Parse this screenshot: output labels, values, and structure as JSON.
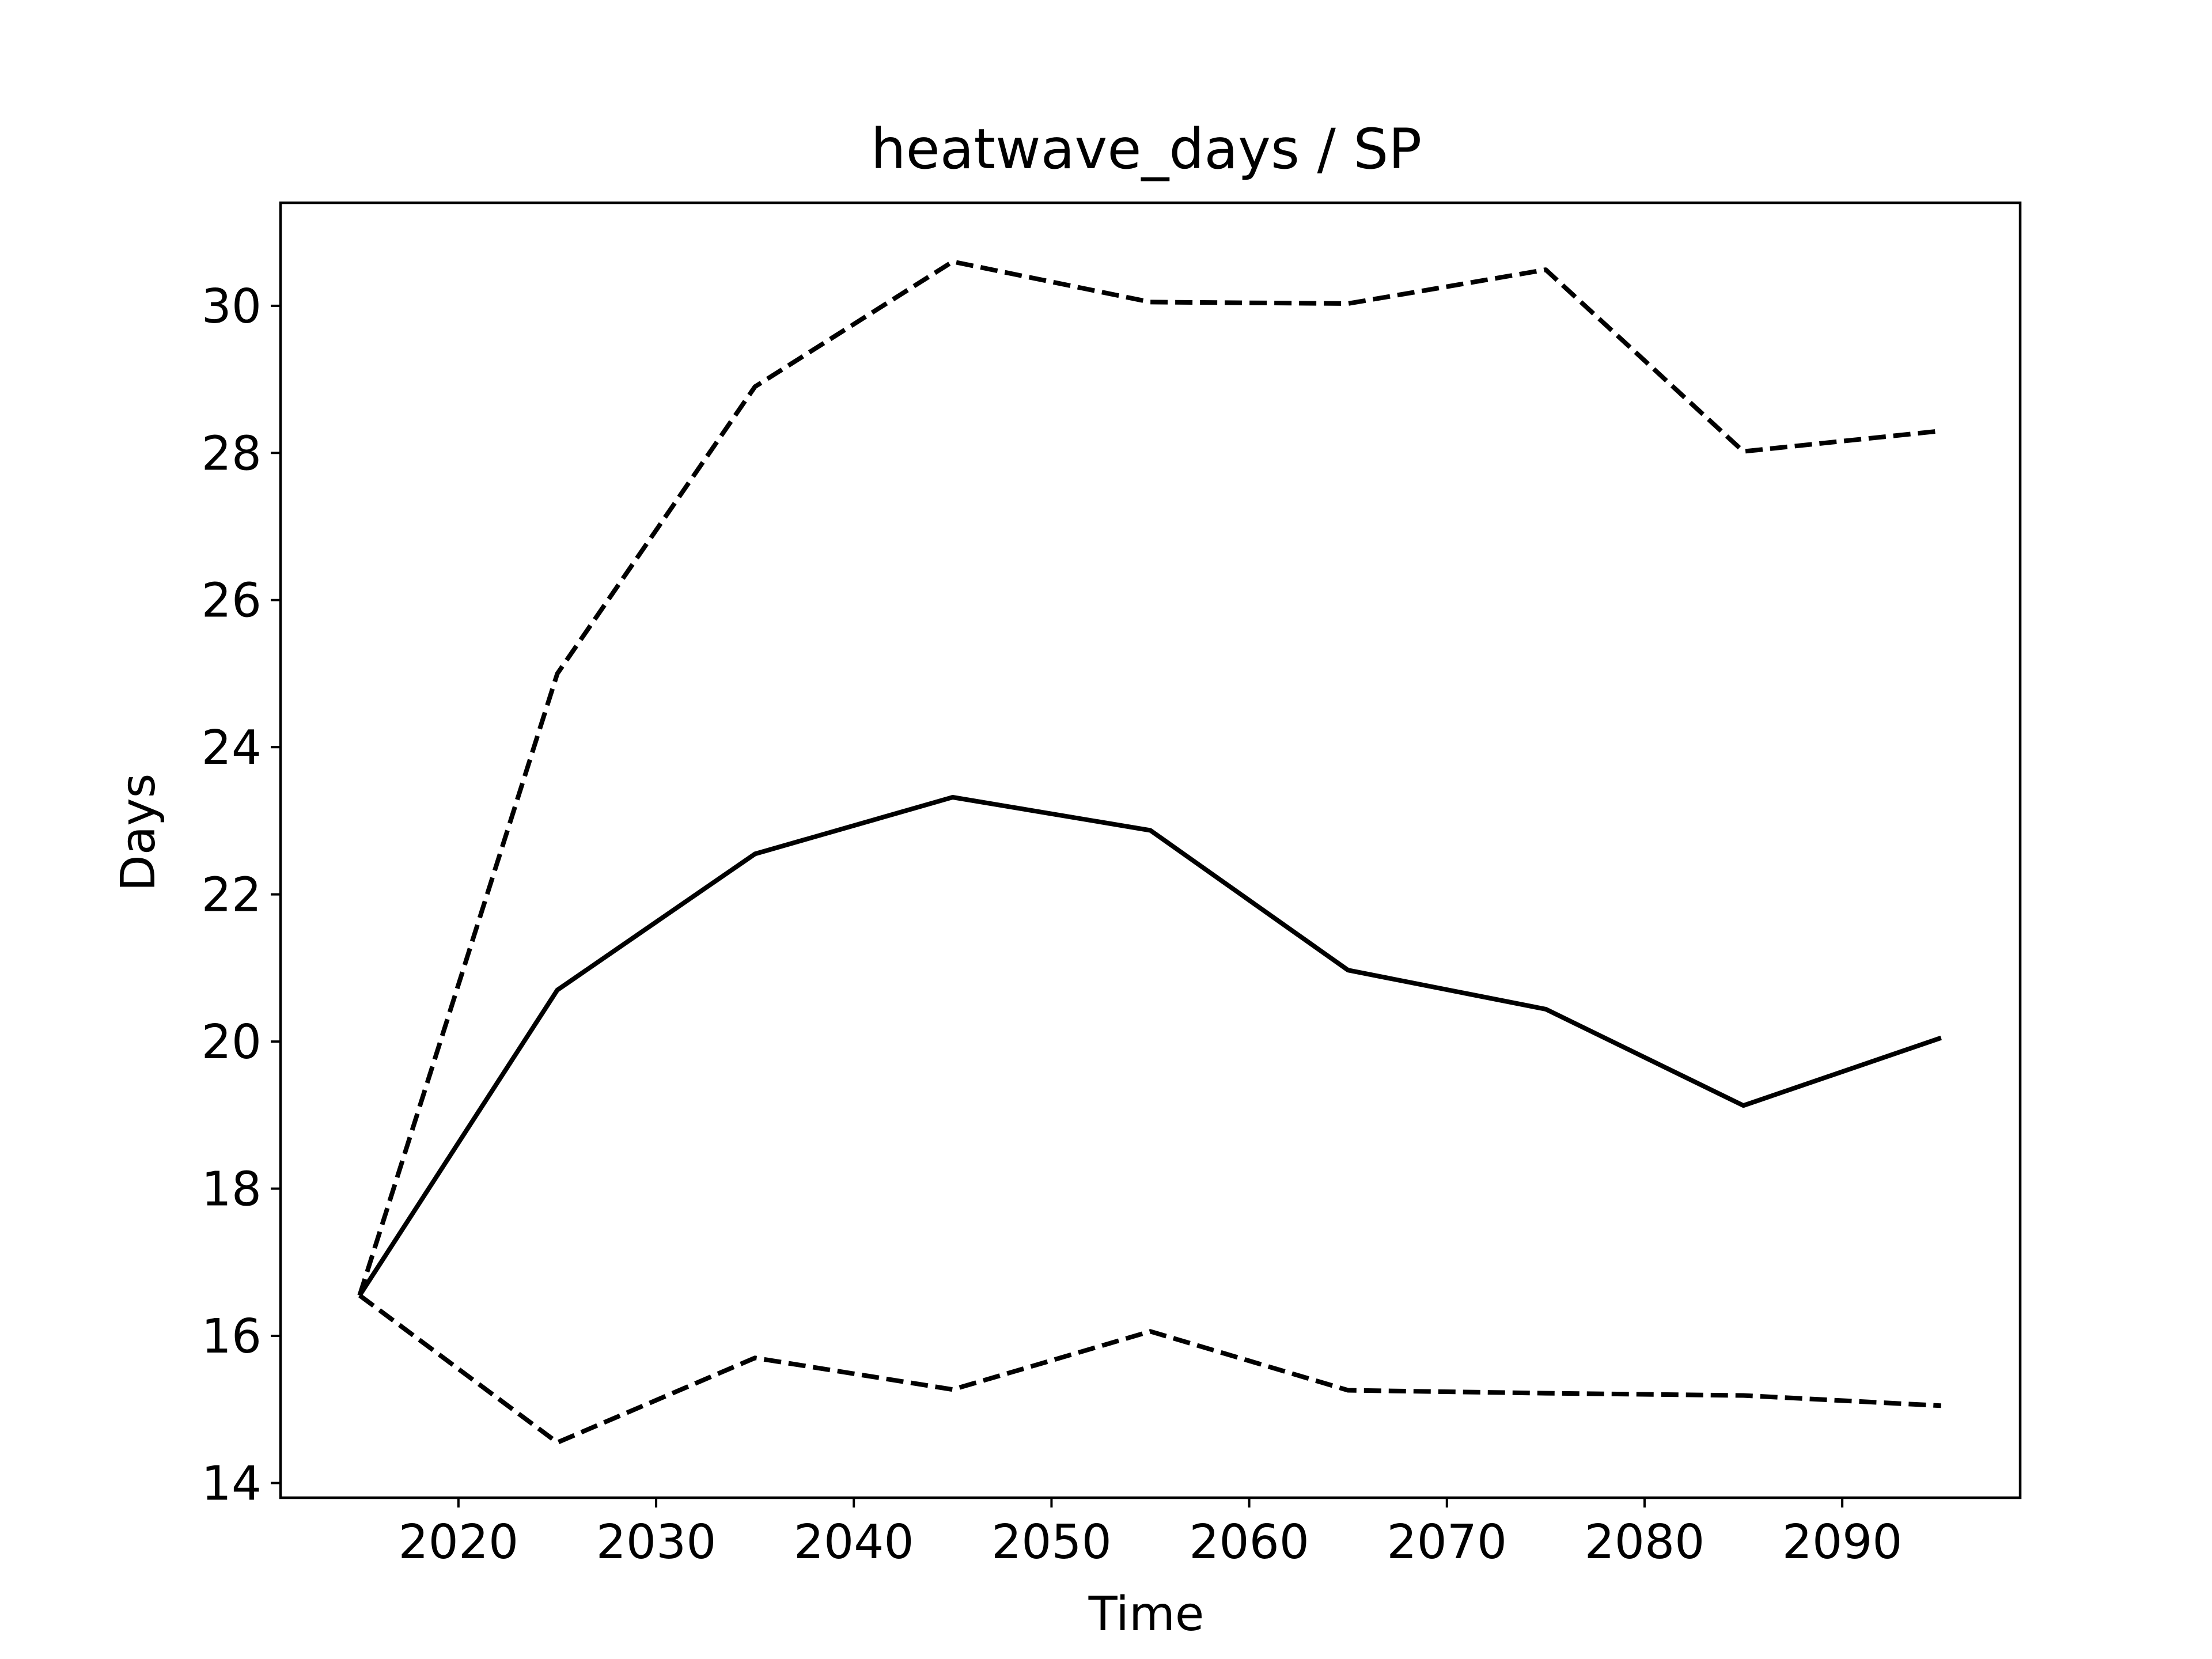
{
  "chart_data": {
    "type": "line",
    "title": "heatwave_days / SP",
    "xlabel": "Time",
    "ylabel": "Days",
    "x": [
      2015,
      2025,
      2035,
      2045,
      2055,
      2065,
      2075,
      2085,
      2095
    ],
    "xlim": [
      2011,
      2099
    ],
    "ylim": [
      13.8,
      31.4
    ],
    "xticks": [
      2020,
      2030,
      2040,
      2050,
      2060,
      2070,
      2080,
      2090
    ],
    "yticks": [
      14,
      16,
      18,
      20,
      22,
      24,
      26,
      28,
      30
    ],
    "grid": false,
    "legend": "none",
    "series": [
      {
        "style": "solid",
        "color": "#000000",
        "values": [
          16.55,
          20.7,
          22.55,
          23.32,
          22.87,
          20.97,
          20.44,
          19.13,
          20.05
        ]
      },
      {
        "style": "dashed",
        "color": "#000000",
        "values": [
          16.55,
          25.0,
          28.9,
          30.6,
          30.05,
          30.03,
          30.49,
          28.02,
          28.3
        ]
      },
      {
        "style": "dashed",
        "color": "#000000",
        "values": [
          16.55,
          14.55,
          15.7,
          15.27,
          16.06,
          15.26,
          15.22,
          15.19,
          15.05
        ]
      }
    ]
  }
}
